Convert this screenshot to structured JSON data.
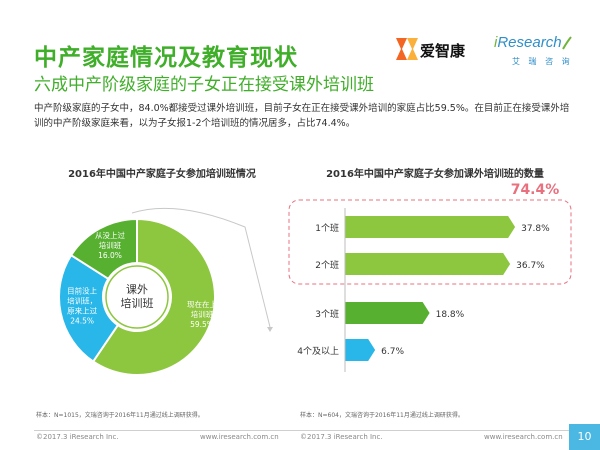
{
  "header": {
    "title": "中产家庭情况及教育现状",
    "subtitle": "六成中产阶级家庭的子女正在接受课外培训班",
    "intro": "中产阶级家庭的子女中，84.0%都接受过课外培训班，目前子女在正在接受课外培训的家庭占比59.5%。在目前正在接受课外培训的中产阶级家庭来看，以为子女报1-2个培训班的情况居多，占比74.4%。"
  },
  "logos": {
    "aizhikang": "爱智康",
    "iresearch_i": "i",
    "iresearch_rest": "Research",
    "iresearch_cn": "艾 瑞 咨 询"
  },
  "colors": {
    "green": "#8dc63f",
    "dark_green": "#57b030",
    "cyan": "#29b6e8",
    "title_green": "#3fae29",
    "highlight": "#e8707f"
  },
  "chart_data": [
    {
      "type": "pie",
      "title": "2016年中国中产家庭子女参加培训班情况",
      "center_label": "课外\n培训班",
      "slices": [
        {
          "label": "现在在上\n培训班",
          "value": 59.5,
          "value_label": "59.5%",
          "color": "#8dc63f"
        },
        {
          "label": "目前没上\n培训班，\n原来上过",
          "value": 24.5,
          "value_label": "24.5%",
          "color": "#29b6e8"
        },
        {
          "label": "从没上过\n培训班",
          "value": 16.0,
          "value_label": "16.0%",
          "color": "#57b030"
        }
      ],
      "note": "样本：N=1015，文瑞咨询于2016年11月通过线上调研获得。"
    },
    {
      "type": "bar",
      "orientation": "horizontal",
      "title": "2016年中国中产家庭子女参加课外培训班的数量",
      "categories": [
        "1个班",
        "2个班",
        "3个班",
        "4个及以上"
      ],
      "values": [
        37.8,
        36.7,
        18.8,
        6.7
      ],
      "value_labels": [
        "37.8%",
        "36.7%",
        "18.8%",
        "6.7%"
      ],
      "colors": [
        "#8dc63f",
        "#8dc63f",
        "#57b030",
        "#29b6e8"
      ],
      "xlim": [
        0,
        40
      ],
      "highlight_label": "74.4%",
      "note": "样本：N=604，文瑞咨询于2016年11月通过线上调研获得。"
    }
  ],
  "footer": {
    "left_copyright": "©2017.3 iResearch Inc.",
    "left_url": "www.iresearch.com.cn",
    "right_copyright": "©2017.3 iResearch Inc.",
    "right_url": "www.iresearch.com.cn",
    "page": "10"
  }
}
